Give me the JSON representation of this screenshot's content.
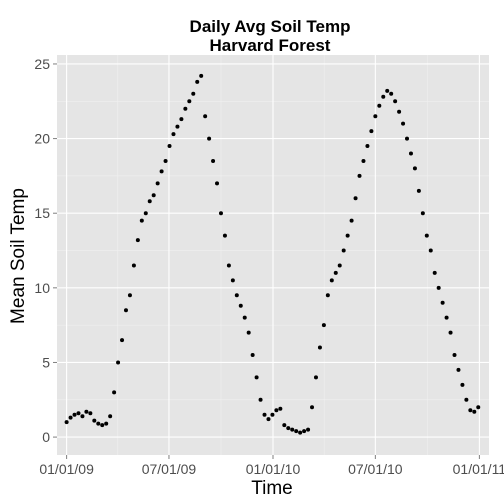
{
  "chart_data": {
    "type": "scatter",
    "title": [
      "Daily Avg Soil Temp",
      "Harvard Forest"
    ],
    "xlabel": "Time",
    "ylabel": "Mean Soil Temp",
    "x_ticks": [
      {
        "date": "2009-01-01",
        "label": "01/01/09"
      },
      {
        "date": "2009-07-01",
        "label": "07/01/09"
      },
      {
        "date": "2010-01-01",
        "label": "01/01/10"
      },
      {
        "date": "2010-07-01",
        "label": "07/01/10"
      },
      {
        "date": "2011-01-01",
        "label": "01/01/11"
      }
    ],
    "xlim": [
      "2008-12-15",
      "2011-01-18"
    ],
    "y_ticks": [
      0,
      5,
      10,
      15,
      20,
      25
    ],
    "ylim": [
      -1.2,
      25.6
    ],
    "grid": true,
    "point_color": "#000000",
    "background": "#e5e5e5",
    "series": [
      {
        "name": "",
        "points": [
          [
            "2009-01-01",
            1.0
          ],
          [
            "2009-01-08",
            1.3
          ],
          [
            "2009-01-15",
            1.5
          ],
          [
            "2009-01-22",
            1.6
          ],
          [
            "2009-01-29",
            1.4
          ],
          [
            "2009-02-05",
            1.7
          ],
          [
            "2009-02-12",
            1.6
          ],
          [
            "2009-02-19",
            1.1
          ],
          [
            "2009-02-26",
            0.9
          ],
          [
            "2009-03-05",
            0.8
          ],
          [
            "2009-03-12",
            0.9
          ],
          [
            "2009-03-19",
            1.4
          ],
          [
            "2009-03-26",
            3.0
          ],
          [
            "2009-04-02",
            5.0
          ],
          [
            "2009-04-09",
            6.5
          ],
          [
            "2009-04-16",
            8.5
          ],
          [
            "2009-04-23",
            9.5
          ],
          [
            "2009-04-30",
            11.5
          ],
          [
            "2009-05-07",
            13.2
          ],
          [
            "2009-05-14",
            14.5
          ],
          [
            "2009-05-21",
            15.0
          ],
          [
            "2009-05-28",
            15.8
          ],
          [
            "2009-06-04",
            16.2
          ],
          [
            "2009-06-11",
            17.0
          ],
          [
            "2009-06-18",
            17.8
          ],
          [
            "2009-06-25",
            18.5
          ],
          [
            "2009-07-02",
            19.5
          ],
          [
            "2009-07-09",
            20.3
          ],
          [
            "2009-07-16",
            20.8
          ],
          [
            "2009-07-23",
            21.3
          ],
          [
            "2009-07-30",
            22.0
          ],
          [
            "2009-08-06",
            22.5
          ],
          [
            "2009-08-13",
            23.0
          ],
          [
            "2009-08-20",
            23.8
          ],
          [
            "2009-08-27",
            24.2
          ],
          [
            "2009-09-03",
            21.5
          ],
          [
            "2009-09-10",
            20.0
          ],
          [
            "2009-09-17",
            18.5
          ],
          [
            "2009-09-24",
            17.0
          ],
          [
            "2009-10-01",
            15.0
          ],
          [
            "2009-10-08",
            13.5
          ],
          [
            "2009-10-15",
            11.5
          ],
          [
            "2009-10-22",
            10.5
          ],
          [
            "2009-10-29",
            9.5
          ],
          [
            "2009-11-05",
            8.8
          ],
          [
            "2009-11-12",
            8.0
          ],
          [
            "2009-11-19",
            7.0
          ],
          [
            "2009-11-26",
            5.5
          ],
          [
            "2009-12-03",
            4.0
          ],
          [
            "2009-12-10",
            2.5
          ],
          [
            "2009-12-17",
            1.5
          ],
          [
            "2009-12-24",
            1.2
          ],
          [
            "2009-12-31",
            1.5
          ],
          [
            "2010-01-07",
            1.8
          ],
          [
            "2010-01-14",
            1.9
          ],
          [
            "2010-01-21",
            0.8
          ],
          [
            "2010-01-28",
            0.6
          ],
          [
            "2010-02-04",
            0.5
          ],
          [
            "2010-02-11",
            0.4
          ],
          [
            "2010-02-18",
            0.3
          ],
          [
            "2010-02-25",
            0.4
          ],
          [
            "2010-03-04",
            0.5
          ],
          [
            "2010-03-11",
            2.0
          ],
          [
            "2010-03-18",
            4.0
          ],
          [
            "2010-03-25",
            6.0
          ],
          [
            "2010-04-01",
            7.5
          ],
          [
            "2010-04-08",
            9.5
          ],
          [
            "2010-04-15",
            10.5
          ],
          [
            "2010-04-22",
            11.0
          ],
          [
            "2010-04-29",
            11.5
          ],
          [
            "2010-05-06",
            12.5
          ],
          [
            "2010-05-13",
            13.5
          ],
          [
            "2010-05-20",
            14.5
          ],
          [
            "2010-05-27",
            16.0
          ],
          [
            "2010-06-03",
            17.5
          ],
          [
            "2010-06-10",
            18.5
          ],
          [
            "2010-06-17",
            19.5
          ],
          [
            "2010-06-24",
            20.5
          ],
          [
            "2010-07-01",
            21.5
          ],
          [
            "2010-07-08",
            22.2
          ],
          [
            "2010-07-15",
            22.8
          ],
          [
            "2010-07-22",
            23.2
          ],
          [
            "2010-07-29",
            23.0
          ],
          [
            "2010-08-05",
            22.5
          ],
          [
            "2010-08-12",
            21.8
          ],
          [
            "2010-08-19",
            21.0
          ],
          [
            "2010-08-26",
            20.0
          ],
          [
            "2010-09-02",
            19.0
          ],
          [
            "2010-09-09",
            18.0
          ],
          [
            "2010-09-16",
            16.5
          ],
          [
            "2010-09-23",
            15.0
          ],
          [
            "2010-09-30",
            13.5
          ],
          [
            "2010-10-07",
            12.5
          ],
          [
            "2010-10-14",
            11.0
          ],
          [
            "2010-10-21",
            10.0
          ],
          [
            "2010-10-28",
            9.0
          ],
          [
            "2010-11-04",
            8.0
          ],
          [
            "2010-11-11",
            7.0
          ],
          [
            "2010-11-18",
            5.5
          ],
          [
            "2010-11-25",
            4.5
          ],
          [
            "2010-12-02",
            3.5
          ],
          [
            "2010-12-09",
            2.5
          ],
          [
            "2010-12-16",
            1.8
          ],
          [
            "2010-12-23",
            1.7
          ],
          [
            "2010-12-30",
            2.0
          ]
        ]
      }
    ]
  }
}
